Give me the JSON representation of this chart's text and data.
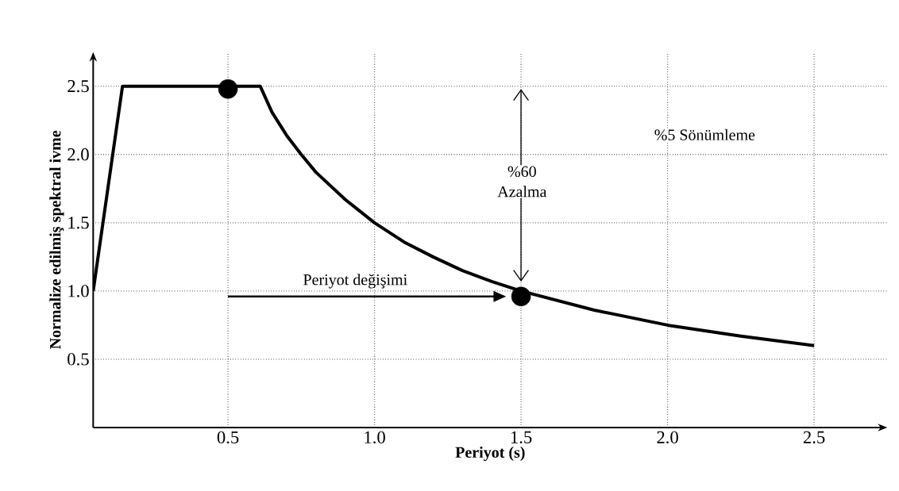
{
  "chart_data": {
    "type": "line",
    "xlabel": "Periyot (s)",
    "ylabel": "Normalize edilmiş spektral ivme",
    "xlim": [
      0.04,
      2.75
    ],
    "ylim": [
      0,
      2.75
    ],
    "xticks": [
      {
        "value": 0.5,
        "label": "0.5"
      },
      {
        "value": 1,
        "label": "1.0"
      },
      {
        "value": 1.5,
        "label": "1.5"
      },
      {
        "value": 2,
        "label": "2.0"
      },
      {
        "value": 2.5,
        "label": "2.5"
      }
    ],
    "yticks": [
      {
        "value": 0.5,
        "label": "0.5"
      },
      {
        "value": 1,
        "label": "1.0"
      },
      {
        "value": 1.5,
        "label": "1.5"
      },
      {
        "value": 2,
        "label": "2.0"
      },
      {
        "value": 2.5,
        "label": "2.5"
      }
    ],
    "grid": true,
    "series": [
      {
        "color": "#000000",
        "marker": "none",
        "x": [
          0.04,
          0.14,
          0.61,
          0.65,
          0.7,
          0.75,
          0.8,
          0.9,
          1.0,
          1.1,
          1.2,
          1.3,
          1.4,
          1.5,
          1.75,
          2.0,
          2.25,
          2.5
        ],
        "values": [
          1.0,
          2.5,
          2.5,
          2.31,
          2.14,
          2.0,
          1.87,
          1.67,
          1.5,
          1.36,
          1.25,
          1.15,
          1.07,
          1.0,
          0.86,
          0.75,
          0.67,
          0.6
        ]
      },
      {
        "type": "scatter",
        "color": "#000000",
        "marker": "circle",
        "x": [
          0.5,
          1.5
        ],
        "values": [
          2.48,
          0.96
        ]
      }
    ],
    "annotations": [
      "Periyot değişimi",
      "%60 Azalma",
      "%5 Sönümleme"
    ]
  }
}
